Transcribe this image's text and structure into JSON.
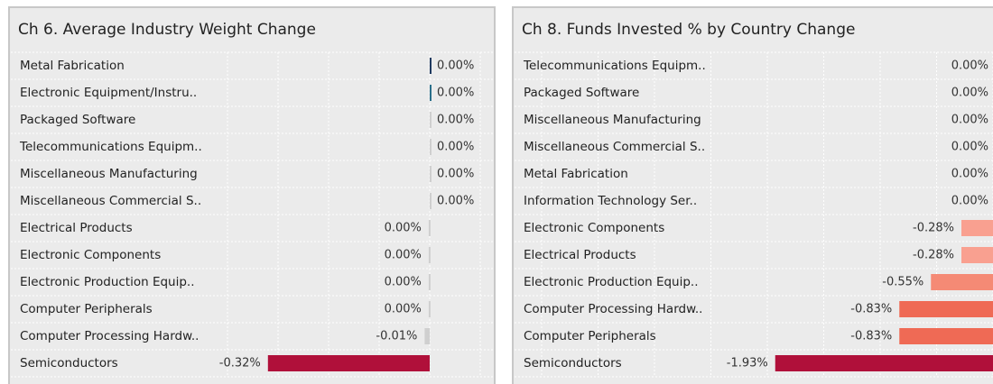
{
  "chart_data": [
    {
      "type": "bar",
      "orientation": "horizontal",
      "title": "Ch 6. Average Industry Weight Change",
      "categories": [
        "Metal Fabrication",
        "Electronic Equipment/Instru..",
        "Packaged Software",
        "Telecommunications Equipm..",
        "Miscellaneous Manufacturing",
        "Miscellaneous Commercial S..",
        "Electrical Products",
        "Electronic Components",
        "Electronic Production Equip..",
        "Computer Peripherals",
        "Computer Processing Hardw..",
        "Semiconductors"
      ],
      "values": [
        0.002,
        0.002,
        0.002,
        0.002,
        0.002,
        0.002,
        -0.002,
        -0.002,
        -0.002,
        -0.002,
        -0.01,
        -0.32
      ],
      "value_labels": [
        "0.00%",
        "0.00%",
        "0.00%",
        "0.00%",
        "0.00%",
        "0.00%",
        "0.00%",
        "0.00%",
        "0.00%",
        "0.00%",
        "-0.01%",
        "-0.32%"
      ],
      "colors": [
        "#1f3a60",
        "#2a6f8a",
        "#cfcfcf",
        "#cfcfcf",
        "#cfcfcf",
        "#cfcfcf",
        "#cfcfcf",
        "#cfcfcf",
        "#cfcfcf",
        "#cfcfcf",
        "#cfcfcf",
        "#b0103a"
      ],
      "xlim": [
        -0.4,
        0.1
      ],
      "xticks": [
        -0.4,
        -0.3,
        -0.2,
        -0.1,
        0,
        0.1
      ],
      "grid": true
    },
    {
      "type": "bar",
      "orientation": "horizontal",
      "title": "Ch 8.  Funds Invested % by Country Change",
      "categories": [
        "Telecommunications Equipm..",
        "Packaged Software",
        "Miscellaneous Manufacturing",
        "Miscellaneous Commercial S..",
        "Metal Fabrication",
        "Information Technology Ser..",
        "Electronic Components",
        "Electrical Products",
        "Electronic Production Equip..",
        "Computer Processing Hardw..",
        "Computer Peripherals",
        "Semiconductors"
      ],
      "values": [
        0.002,
        0.002,
        0.002,
        0.002,
        0.002,
        0.002,
        -0.28,
        -0.28,
        -0.55,
        -0.83,
        -0.83,
        -1.93
      ],
      "value_labels": [
        "0.00%",
        "0.00%",
        "0.00%",
        "0.00%",
        "0.00%",
        "0.00%",
        "-0.28%",
        "-0.28%",
        "-0.55%",
        "-0.83%",
        "-0.83%",
        "-1.93%"
      ],
      "colors": [
        "#f9a090",
        "#f9a090",
        "#f9a090",
        "#f9a090",
        "#f9a090",
        "#f9a090",
        "#f9a090",
        "#f9a090",
        "#f58a75",
        "#ef6a55",
        "#ef6a55",
        "#b0103a"
      ],
      "xlim": [
        -4,
        0.5
      ],
      "xticks": [
        -4,
        -3.5,
        -3,
        -2.5,
        -2,
        -1.5,
        -1,
        -0.5,
        0,
        0.5
      ],
      "grid": true
    }
  ]
}
